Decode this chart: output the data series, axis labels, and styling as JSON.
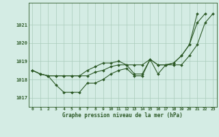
{
  "title": "Graphe pression niveau de la mer (hPa)",
  "bg_color": "#d4ece4",
  "grid_color": "#aaccbb",
  "line_color": "#2d5a27",
  "xlim": [
    -0.5,
    23.5
  ],
  "ylim": [
    1016.5,
    1022.2
  ],
  "yticks": [
    1017,
    1018,
    1019,
    1020,
    1021
  ],
  "xticks": [
    0,
    1,
    2,
    3,
    4,
    5,
    6,
    7,
    8,
    9,
    10,
    11,
    12,
    13,
    14,
    15,
    16,
    17,
    18,
    19,
    20,
    21,
    22,
    23
  ],
  "series1_x": [
    0,
    1,
    2,
    3,
    4,
    5,
    6,
    7,
    8,
    9,
    10,
    11,
    12,
    13,
    14,
    15,
    16,
    17,
    18,
    19,
    20,
    21,
    22,
    23
  ],
  "series1_y": [
    1018.5,
    1018.3,
    1018.2,
    1017.7,
    1017.3,
    1017.3,
    1017.3,
    1017.8,
    1017.8,
    1018.0,
    1018.3,
    1018.5,
    1018.6,
    1018.2,
    1018.2,
    1019.1,
    1018.3,
    1018.8,
    1018.8,
    1018.8,
    1019.3,
    1019.9,
    1021.1,
    1021.6
  ],
  "series2_x": [
    0,
    1,
    2,
    3,
    4,
    5,
    6,
    7,
    8,
    9,
    10,
    11,
    12,
    13,
    14,
    15,
    16,
    17,
    18,
    19,
    20,
    21,
    22
  ],
  "series2_y": [
    1018.5,
    1018.3,
    1018.2,
    1018.2,
    1018.2,
    1018.2,
    1018.2,
    1018.2,
    1018.4,
    1018.5,
    1018.7,
    1018.8,
    1018.8,
    1018.8,
    1018.8,
    1019.1,
    1018.8,
    1018.8,
    1018.9,
    1019.3,
    1019.9,
    1021.1,
    1021.6
  ],
  "series3_x": [
    0,
    1,
    2,
    3,
    4,
    5,
    6,
    7,
    8,
    9,
    10,
    11,
    12,
    13,
    14,
    15,
    16,
    17,
    18,
    19,
    20,
    21
  ],
  "series3_y": [
    1018.5,
    1018.3,
    1018.2,
    1018.2,
    1018.2,
    1018.2,
    1018.2,
    1018.5,
    1018.7,
    1018.9,
    1018.9,
    1019.0,
    1018.8,
    1018.3,
    1018.3,
    1019.1,
    1018.8,
    1018.8,
    1018.9,
    1019.3,
    1019.9,
    1021.6
  ]
}
